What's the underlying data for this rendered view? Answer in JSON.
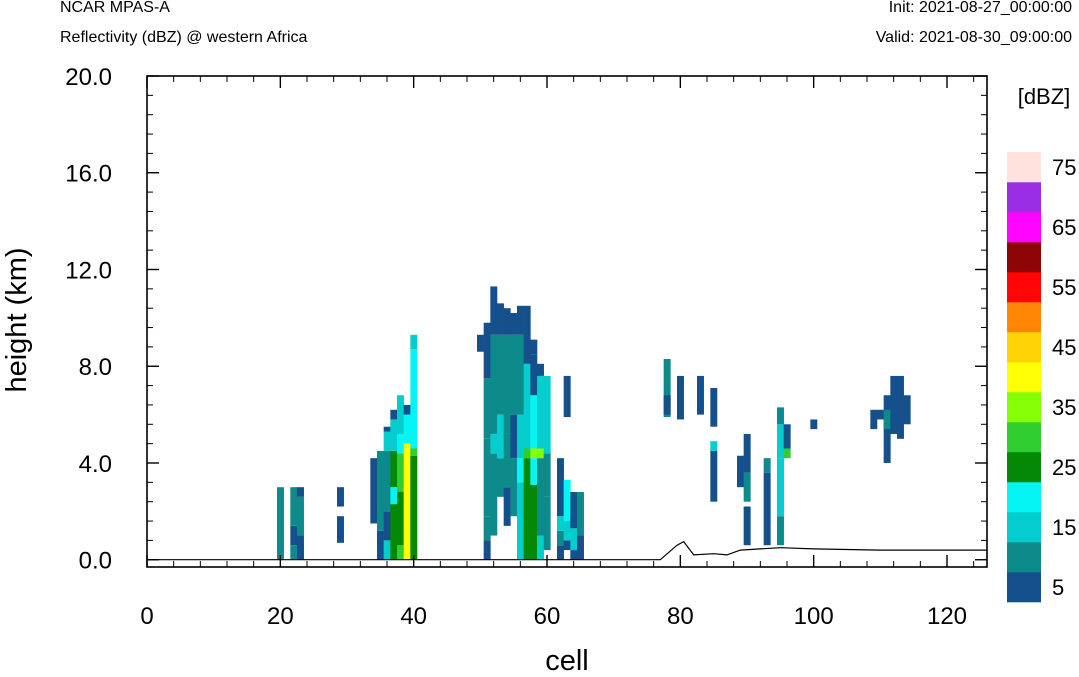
{
  "header": {
    "model": "NCAR MPAS-A",
    "field": "Reflectivity (dBZ) @ western Africa",
    "init": "Init: 2021-08-27_00:00:00",
    "valid": "Valid: 2021-08-30_09:00:00"
  },
  "chart_data": {
    "type": "heatmap",
    "title": "Reflectivity (dBZ) @ western Africa",
    "xlabel": "cell",
    "ylabel": "height (km)",
    "xlim": [
      0,
      126
    ],
    "ylim": [
      -0.3,
      20.0
    ],
    "xticks": [
      0,
      20,
      40,
      60,
      80,
      100,
      120
    ],
    "xtick_labels": [
      "0",
      "20",
      "40",
      "60",
      "80",
      "100",
      "120"
    ],
    "yticks": [
      0.0,
      4.0,
      8.0,
      12.0,
      16.0,
      20.0
    ],
    "ytick_labels": [
      "0.0",
      "4.0",
      "8.0",
      "12.0",
      "16.0",
      "20.0"
    ],
    "colorbar": {
      "unit_label": "[dBZ]",
      "levels": [
        5,
        10,
        15,
        20,
        25,
        30,
        35,
        40,
        45,
        50,
        55,
        60,
        65,
        70,
        75
      ],
      "tick_labels": [
        "5",
        "15",
        "25",
        "35",
        "45",
        "55",
        "65",
        "75"
      ],
      "colors": [
        "#15508c",
        "#0d8b8b",
        "#05cdcd",
        "#05f5f5",
        "#058805",
        "#2fcd2f",
        "#84ff05",
        "#ffff05",
        "#ffd305",
        "#ff8505",
        "#ff0505",
        "#8c0505",
        "#ff05ff",
        "#9a2ee3",
        "#ffe2db"
      ]
    },
    "terrain": [
      [
        0,
        0
      ],
      [
        77,
        0
      ],
      [
        79.5,
        0.6
      ],
      [
        80.5,
        0.75
      ],
      [
        82,
        0.2
      ],
      [
        85,
        0.25
      ],
      [
        87,
        0.2
      ],
      [
        89,
        0.4
      ],
      [
        92,
        0.45
      ],
      [
        95,
        0.5
      ],
      [
        100,
        0.45
      ],
      [
        110,
        0.4
      ],
      [
        126,
        0.4
      ]
    ],
    "columns": [
      {
        "x": 20,
        "segs": [
          [
            0.0,
            3.0,
            10
          ]
        ]
      },
      {
        "x": 22,
        "segs": [
          [
            0.0,
            0.6,
            10
          ],
          [
            0.6,
            1.4,
            5
          ],
          [
            1.4,
            3.0,
            10
          ]
        ]
      },
      {
        "x": 23,
        "segs": [
          [
            0.0,
            1.0,
            5
          ],
          [
            1.0,
            2.6,
            10
          ],
          [
            2.6,
            3.0,
            5
          ]
        ]
      },
      {
        "x": 29,
        "segs": [
          [
            0.7,
            1.8,
            5
          ],
          [
            2.2,
            3.0,
            5
          ]
        ]
      },
      {
        "x": 34,
        "segs": [
          [
            1.5,
            4.2,
            5
          ]
        ]
      },
      {
        "x": 35,
        "segs": [
          [
            0.0,
            1.2,
            5
          ],
          [
            1.2,
            4.5,
            10
          ]
        ]
      },
      {
        "x": 36,
        "segs": [
          [
            0.0,
            0.8,
            15
          ],
          [
            0.8,
            2.0,
            5
          ],
          [
            2.0,
            4.5,
            10
          ],
          [
            4.5,
            5.3,
            15
          ],
          [
            5.3,
            5.5,
            5
          ]
        ]
      },
      {
        "x": 37,
        "segs": [
          [
            0.0,
            2.3,
            25
          ],
          [
            2.3,
            3.0,
            20
          ],
          [
            3.0,
            4.5,
            25
          ],
          [
            4.5,
            5.8,
            15
          ],
          [
            5.8,
            6.2,
            5
          ]
        ]
      },
      {
        "x": 38,
        "segs": [
          [
            0.0,
            0.6,
            30
          ],
          [
            0.6,
            2.8,
            25
          ],
          [
            2.8,
            4.4,
            30
          ],
          [
            4.4,
            5.2,
            20
          ],
          [
            5.2,
            6.8,
            15
          ]
        ]
      },
      {
        "x": 39,
        "segs": [
          [
            0.0,
            4.8,
            40
          ],
          [
            4.8,
            6.0,
            20
          ],
          [
            6.0,
            6.4,
            5
          ]
        ]
      },
      {
        "x": 40,
        "segs": [
          [
            0.0,
            4.3,
            25
          ],
          [
            4.3,
            4.6,
            30
          ],
          [
            4.6,
            8.7,
            20
          ],
          [
            8.7,
            9.3,
            15
          ]
        ]
      },
      {
        "x": 50,
        "segs": [
          [
            8.6,
            9.3,
            5
          ]
        ]
      },
      {
        "x": 51,
        "segs": [
          [
            0.0,
            0.8,
            5
          ],
          [
            0.8,
            1.8,
            10
          ],
          [
            1.8,
            5.0,
            10
          ],
          [
            5.0,
            7.5,
            10
          ],
          [
            7.5,
            9.8,
            5
          ]
        ]
      },
      {
        "x": 52,
        "segs": [
          [
            1.0,
            4.4,
            10
          ],
          [
            4.4,
            5.2,
            15
          ],
          [
            5.2,
            9.3,
            10
          ],
          [
            9.3,
            11.3,
            5
          ]
        ]
      },
      {
        "x": 53,
        "segs": [
          [
            2.6,
            4.2,
            10
          ],
          [
            4.2,
            6.0,
            15
          ],
          [
            6.0,
            9.3,
            10
          ],
          [
            9.3,
            10.6,
            5
          ]
        ]
      },
      {
        "x": 54,
        "segs": [
          [
            1.4,
            3.0,
            5
          ],
          [
            3.0,
            5.2,
            10
          ],
          [
            5.2,
            9.3,
            10
          ],
          [
            9.3,
            10.4,
            5
          ]
        ]
      },
      {
        "x": 55,
        "segs": [
          [
            1.8,
            4.2,
            10
          ],
          [
            4.2,
            6.0,
            5
          ],
          [
            6.0,
            9.3,
            10
          ],
          [
            9.3,
            10.2,
            5
          ]
        ]
      },
      {
        "x": 56,
        "segs": [
          [
            0.0,
            3.2,
            15
          ],
          [
            3.2,
            4.2,
            20
          ],
          [
            4.2,
            6.0,
            15
          ],
          [
            6.0,
            9.3,
            10
          ],
          [
            9.3,
            10.5,
            5
          ]
        ]
      },
      {
        "x": 57,
        "segs": [
          [
            0.0,
            1.6,
            25
          ],
          [
            1.6,
            4.2,
            25
          ],
          [
            4.2,
            4.6,
            30
          ],
          [
            4.6,
            8.1,
            15
          ],
          [
            8.1,
            10.5,
            5
          ]
        ]
      },
      {
        "x": 58,
        "segs": [
          [
            0.0,
            3.1,
            25
          ],
          [
            3.1,
            4.2,
            20
          ],
          [
            4.2,
            4.6,
            35
          ],
          [
            4.6,
            6.8,
            20
          ],
          [
            6.8,
            8.5,
            5
          ],
          [
            8.5,
            9.1,
            5
          ]
        ]
      },
      {
        "x": 59,
        "segs": [
          [
            0.0,
            1.0,
            15
          ],
          [
            1.0,
            4.2,
            10
          ],
          [
            4.2,
            4.6,
            35
          ],
          [
            4.6,
            7.6,
            15
          ],
          [
            7.6,
            8.1,
            5
          ]
        ]
      },
      {
        "x": 60,
        "segs": [
          [
            0.4,
            2.6,
            10
          ],
          [
            2.6,
            4.4,
            10
          ],
          [
            4.4,
            7.6,
            15
          ]
        ]
      },
      {
        "x": 62,
        "segs": [
          [
            0.0,
            0.6,
            5
          ],
          [
            0.6,
            1.2,
            10
          ],
          [
            1.2,
            1.8,
            15
          ],
          [
            1.8,
            4.2,
            5
          ]
        ]
      },
      {
        "x": 63,
        "segs": [
          [
            0.4,
            0.8,
            5
          ],
          [
            0.8,
            1.6,
            15
          ],
          [
            1.6,
            3.3,
            20
          ],
          [
            5.9,
            7.6,
            5
          ]
        ]
      },
      {
        "x": 64,
        "segs": [
          [
            0.0,
            0.4,
            5
          ],
          [
            0.4,
            1.3,
            15
          ],
          [
            1.3,
            2.8,
            5
          ]
        ]
      },
      {
        "x": 65,
        "segs": [
          [
            0.0,
            1.0,
            5
          ],
          [
            1.0,
            2.8,
            10
          ]
        ]
      },
      {
        "x": 78,
        "segs": [
          [
            5.9,
            8.3,
            10
          ],
          [
            6.0,
            6.8,
            5
          ]
        ]
      },
      {
        "x": 80,
        "segs": [
          [
            5.8,
            7.6,
            5
          ]
        ]
      },
      {
        "x": 83,
        "segs": [
          [
            6.0,
            7.6,
            5
          ]
        ]
      },
      {
        "x": 85,
        "segs": [
          [
            2.4,
            4.5,
            5
          ],
          [
            4.5,
            4.9,
            15
          ],
          [
            5.5,
            7.1,
            5
          ]
        ]
      },
      {
        "x": 89,
        "segs": [
          [
            3.0,
            4.3,
            5
          ]
        ]
      },
      {
        "x": 90,
        "segs": [
          [
            0.6,
            2.2,
            5
          ],
          [
            2.4,
            3.6,
            10
          ],
          [
            3.6,
            5.2,
            5
          ]
        ]
      },
      {
        "x": 93,
        "segs": [
          [
            0.6,
            3.6,
            5
          ],
          [
            3.6,
            4.2,
            10
          ]
        ]
      },
      {
        "x": 95,
        "segs": [
          [
            0.6,
            1.8,
            10
          ],
          [
            1.8,
            4.2,
            15
          ],
          [
            4.2,
            5.6,
            15
          ],
          [
            5.6,
            6.3,
            10
          ]
        ]
      },
      {
        "x": 96,
        "segs": [
          [
            4.2,
            4.6,
            30
          ],
          [
            4.6,
            5.6,
            5
          ]
        ]
      },
      {
        "x": 100,
        "segs": [
          [
            5.4,
            5.8,
            5
          ]
        ]
      },
      {
        "x": 109,
        "segs": [
          [
            5.4,
            6.2,
            5
          ]
        ]
      },
      {
        "x": 110,
        "segs": [
          [
            5.8,
            6.2,
            5
          ]
        ]
      },
      {
        "x": 111,
        "segs": [
          [
            4.0,
            6.8,
            5
          ],
          [
            5.4,
            6.2,
            10
          ]
        ]
      },
      {
        "x": 112,
        "segs": [
          [
            5.2,
            7.6,
            5
          ]
        ]
      },
      {
        "x": 113,
        "segs": [
          [
            5.0,
            7.6,
            5
          ]
        ]
      },
      {
        "x": 114,
        "segs": [
          [
            5.6,
            6.8,
            5
          ]
        ]
      }
    ]
  }
}
